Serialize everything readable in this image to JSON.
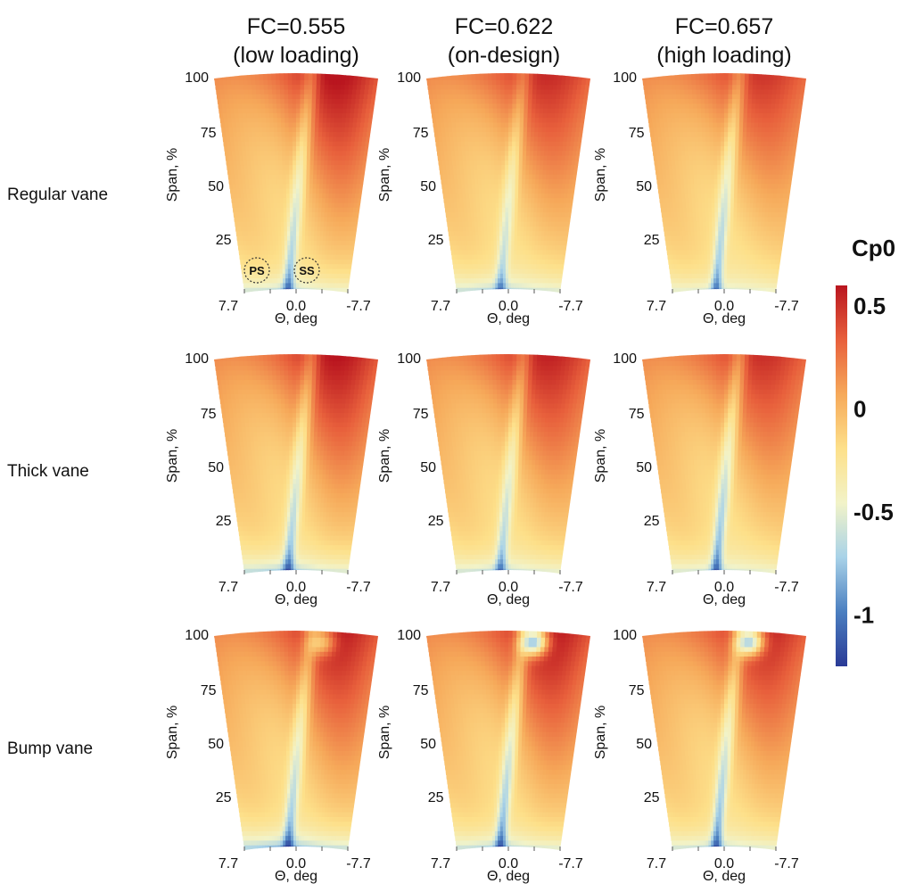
{
  "chart_data": {
    "type": "heatmap",
    "columns": [
      {
        "title_line1": "FC=0.555",
        "title_line2": "(low loading)"
      },
      {
        "title_line1": "FC=0.622",
        "title_line2": "(on-design)"
      },
      {
        "title_line1": "FC=0.657",
        "title_line2": "(high loading)"
      }
    ],
    "rows": [
      "Regular vane",
      "Thick vane",
      "Bump vane"
    ],
    "ylabel": "Span, %",
    "yticks": [
      "100",
      "75",
      "50",
      "25"
    ],
    "xlabel": "Θ, deg",
    "xticks": [
      "7.7",
      "0.0",
      "-7.7"
    ],
    "xlim": [
      7.7,
      -7.7
    ],
    "ylim": [
      0,
      100
    ],
    "markers": [
      "PS",
      "SS"
    ],
    "colorbar": {
      "title": "Cp0",
      "ticks": [
        "0.5",
        "0",
        "-0.5",
        "-1"
      ],
      "range": [
        -1.25,
        0.6
      ],
      "colors": [
        "#2a3a96",
        "#4b7fc0",
        "#a8d2e8",
        "#f2f3c8",
        "#fde08a",
        "#f6a95a",
        "#e8603c",
        "#b9151f"
      ]
    },
    "panel_features": [
      [
        {
          "wake_lean": -0.9,
          "wake_width": 0.35,
          "wake_depth": 0.55,
          "hub_loss": 0.55,
          "tip_loss": 0,
          "peak": 0.32
        },
        {
          "wake_lean": -0.9,
          "wake_width": 0.3,
          "wake_depth": 0.45,
          "hub_loss": 0.6,
          "tip_loss": 0,
          "peak": 0.22
        },
        {
          "wake_lean": -0.9,
          "wake_width": 0.3,
          "wake_depth": 0.55,
          "hub_loss": 0.45,
          "tip_loss": 0,
          "peak": 0.18
        }
      ],
      [
        {
          "wake_lean": -0.9,
          "wake_width": 0.35,
          "wake_depth": 0.55,
          "hub_loss": 0.65,
          "tip_loss": 0,
          "peak": 0.3
        },
        {
          "wake_lean": -0.9,
          "wake_width": 0.3,
          "wake_depth": 0.5,
          "hub_loss": 0.55,
          "tip_loss": 0,
          "peak": 0.25
        },
        {
          "wake_lean": -0.9,
          "wake_width": 0.3,
          "wake_depth": 0.6,
          "hub_loss": 0.5,
          "tip_loss": 0,
          "peak": 0.2
        }
      ],
      [
        {
          "wake_lean": -0.9,
          "wake_width": 0.35,
          "wake_depth": 0.55,
          "hub_loss": 0.75,
          "tip_loss": 0.55,
          "peak": 0.28
        },
        {
          "wake_lean": -0.9,
          "wake_width": 0.3,
          "wake_depth": 0.6,
          "hub_loss": 0.6,
          "tip_loss": 1.25,
          "peak": 0.3
        },
        {
          "wake_lean": -0.9,
          "wake_width": 0.3,
          "wake_depth": 0.6,
          "hub_loss": 0.55,
          "tip_loss": 1.15,
          "peak": 0.24
        }
      ]
    ]
  }
}
